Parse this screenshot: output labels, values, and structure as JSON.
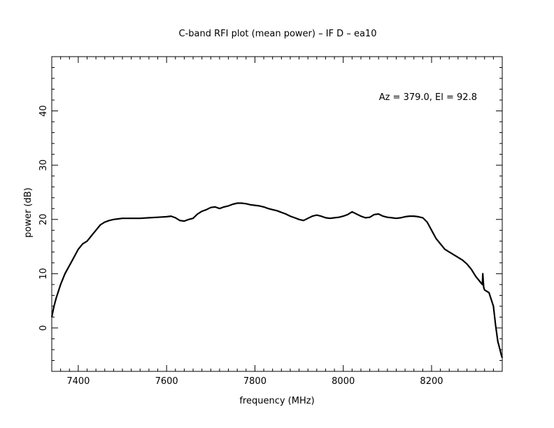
{
  "chart_data": {
    "type": "line",
    "title": "C-band RFI plot (mean power) – IF D – ea10",
    "xlabel": "frequency (MHz)",
    "ylabel": "power (dB)",
    "annotation": "Az = 379.0, El = 92.8",
    "xlim": [
      7340,
      8360
    ],
    "ylim": [
      -8,
      50
    ],
    "x_ticks": [
      7400,
      7600,
      7800,
      8000,
      8200
    ],
    "y_ticks": [
      0,
      10,
      20,
      30,
      40
    ],
    "grid": false,
    "line_color": "#000000",
    "series": [
      {
        "x": [
          7340,
          7345,
          7350,
          7360,
          7370,
          7380,
          7390,
          7400,
          7410,
          7420,
          7430,
          7440,
          7450,
          7460,
          7470,
          7480,
          7490,
          7500,
          7520,
          7540,
          7560,
          7580,
          7600,
          7610,
          7620,
          7630,
          7640,
          7650,
          7660,
          7670,
          7680,
          7690,
          7700,
          7710,
          7720,
          7730,
          7740,
          7750,
          7760,
          7770,
          7780,
          7790,
          7800,
          7810,
          7820,
          7830,
          7840,
          7850,
          7860,
          7870,
          7880,
          7890,
          7900,
          7910,
          7920,
          7930,
          7940,
          7950,
          7960,
          7970,
          7980,
          7990,
          8000,
          8010,
          8020,
          8030,
          8040,
          8050,
          8060,
          8070,
          8080,
          8090,
          8100,
          8110,
          8120,
          8130,
          8140,
          8150,
          8160,
          8170,
          8180,
          8190,
          8200,
          8210,
          8220,
          8230,
          8240,
          8250,
          8260,
          8270,
          8280,
          8290,
          8300,
          8310,
          8315,
          8316,
          8317,
          8318,
          8320,
          8330,
          8340,
          8345,
          8350,
          8355,
          8358,
          8360
        ],
        "y": [
          2.0,
          4.0,
          5.5,
          8.0,
          10.0,
          11.5,
          13.0,
          14.5,
          15.5,
          16.0,
          17.0,
          18.0,
          19.0,
          19.5,
          19.8,
          20.0,
          20.1,
          20.2,
          20.2,
          20.2,
          20.3,
          20.4,
          20.5,
          20.6,
          20.3,
          19.8,
          19.7,
          20.0,
          20.2,
          21.0,
          21.5,
          21.8,
          22.2,
          22.3,
          22.0,
          22.3,
          22.5,
          22.8,
          23.0,
          23.0,
          22.9,
          22.7,
          22.6,
          22.5,
          22.3,
          22.0,
          21.8,
          21.6,
          21.3,
          21.0,
          20.6,
          20.3,
          20.0,
          19.8,
          20.2,
          20.6,
          20.8,
          20.6,
          20.3,
          20.2,
          20.3,
          20.4,
          20.6,
          20.9,
          21.4,
          21.0,
          20.6,
          20.3,
          20.4,
          20.9,
          21.0,
          20.6,
          20.4,
          20.3,
          20.2,
          20.3,
          20.5,
          20.6,
          20.6,
          20.5,
          20.3,
          19.5,
          18.0,
          16.5,
          15.5,
          14.5,
          14.0,
          13.5,
          13.0,
          12.5,
          11.8,
          10.8,
          9.5,
          8.5,
          8.0,
          10.0,
          8.5,
          7.5,
          7.0,
          6.5,
          4.0,
          0.5,
          -2.5,
          -4.0,
          -5.0,
          -5.5
        ]
      }
    ]
  }
}
